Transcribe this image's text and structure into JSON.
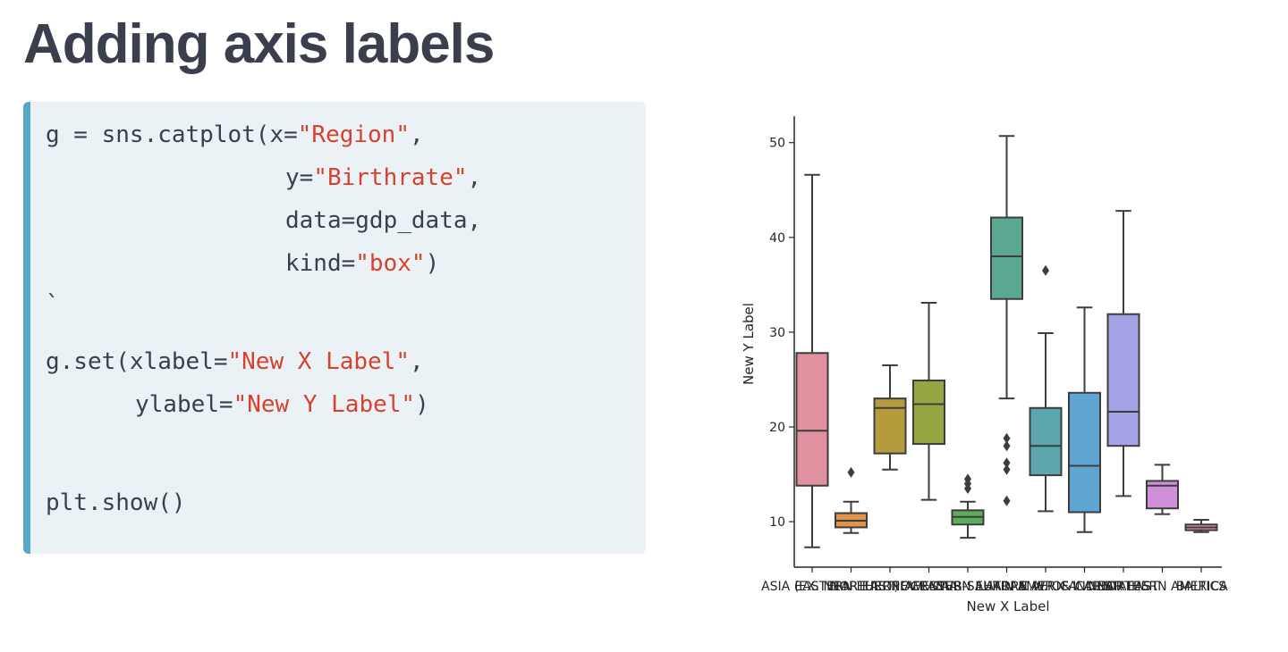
{
  "slide": {
    "title": "Adding axis labels"
  },
  "code": {
    "l1_a": "g = sns.catplot(x=",
    "l1_s": "\"Region\"",
    "l1_b": ",",
    "l2_a": "y=",
    "l2_s": "\"Birthrate\"",
    "l2_b": ",",
    "l3": "data=gdp_data,",
    "l4_a": "kind=",
    "l4_s": "\"box\"",
    "l4_b": ")",
    "l5": "`",
    "l6_a": "g.set(xlabel=",
    "l6_s": "\"New X Label\"",
    "l6_b": ",",
    "l7_a": "ylabel=",
    "l7_s": "\"New Y Label\"",
    "l7_b": ")",
    "l8": "plt.show()"
  },
  "chart_data": {
    "type": "box",
    "xlabel": "New X Label",
    "ylabel": "New Y Label",
    "ylim": [
      5.2,
      52.8
    ],
    "yticks": [
      10,
      20,
      30,
      40,
      50
    ],
    "categories": [
      "ASIA (EX. NEAR EAST)",
      "EASTERN EUROPE",
      "NORTHERN AFRICA",
      "OCEANIA",
      "WESTERN EUROPE",
      "SUB-SAHARAN AFRICA",
      "LATIN AMER. & CARIB",
      "C.W. OF IND. STATES",
      "NEAR EAST",
      "NORTHERN AMERICA",
      "BALTICS"
    ],
    "boxes": [
      {
        "min": 7.3,
        "q1": 13.8,
        "median": 19.6,
        "q3": 27.8,
        "max": 46.6,
        "outliers": [],
        "color": "#e0909e"
      },
      {
        "min": 8.8,
        "q1": 9.4,
        "median": 10.1,
        "q3": 10.9,
        "max": 12.1,
        "outliers": [
          15.2
        ],
        "color": "#e1954a"
      },
      {
        "min": 15.5,
        "q1": 17.2,
        "median": 22.0,
        "q3": 23.0,
        "max": 26.5,
        "outliers": [],
        "color": "#b59b3d"
      },
      {
        "min": 12.3,
        "q1": 18.2,
        "median": 22.4,
        "q3": 24.9,
        "max": 33.1,
        "outliers": [],
        "color": "#97a643"
      },
      {
        "min": 8.3,
        "q1": 9.7,
        "median": 10.5,
        "q3": 11.2,
        "max": 12.1,
        "outliers": [
          13.5,
          14.0,
          14.5
        ],
        "color": "#5dad5b"
      },
      {
        "min": 23.0,
        "q1": 33.5,
        "median": 38.0,
        "q3": 42.1,
        "max": 50.7,
        "outliers": [
          12.2,
          15.5,
          16.2,
          18.0,
          18.8
        ],
        "color": "#5aa891"
      },
      {
        "min": 11.1,
        "q1": 14.9,
        "median": 18.0,
        "q3": 22.0,
        "max": 29.9,
        "outliers": [
          36.5
        ],
        "color": "#5ba7ad"
      },
      {
        "min": 8.9,
        "q1": 11.0,
        "median": 15.9,
        "q3": 23.6,
        "max": 32.6,
        "outliers": [],
        "color": "#5ea6d1"
      },
      {
        "min": 12.7,
        "q1": 18.0,
        "median": 21.6,
        "q3": 31.9,
        "max": 42.8,
        "outliers": [],
        "color": "#a3a3e6"
      },
      {
        "min": 10.8,
        "q1": 11.4,
        "median": 13.8,
        "q3": 14.3,
        "max": 16.0,
        "outliers": [],
        "color": "#d28fd9"
      },
      {
        "min": 8.9,
        "q1": 9.1,
        "median": 9.4,
        "q3": 9.7,
        "max": 10.2,
        "outliers": [],
        "color": "#e497c1"
      }
    ]
  }
}
